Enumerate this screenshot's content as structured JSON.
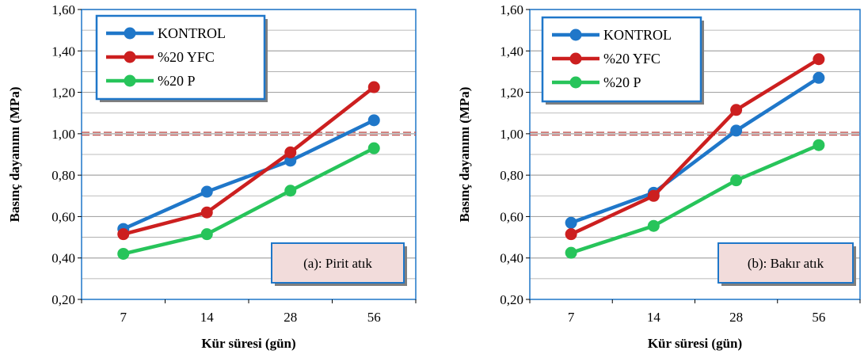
{
  "colors": {
    "KONTROL": "#1f77c9",
    "%20 YFC": "#cc1f1f",
    "%20 P": "#27c45a",
    "frame": "#1f77c9",
    "grid": "#a6a6a6",
    "reference": "#c0504d",
    "note_fill": "#f2dcdb"
  },
  "chart_data": [
    {
      "type": "line",
      "categories": [
        "7",
        "14",
        "28",
        "56"
      ],
      "series": [
        {
          "name": "KONTROL",
          "values": [
            0.54,
            0.72,
            0.87,
            1.065
          ]
        },
        {
          "name": "%20 YFC",
          "values": [
            0.515,
            0.62,
            0.91,
            1.225
          ]
        },
        {
          "name": "%20 P",
          "values": [
            0.42,
            0.515,
            0.725,
            0.93
          ]
        }
      ],
      "reference_line": 1.0,
      "xlabel": "Kür süresi (gün)",
      "ylabel": "Basınç dayanımı (MPa)",
      "ylim": [
        0.2,
        1.6
      ],
      "yticks": [
        "0,20",
        "0,40",
        "0,60",
        "0,80",
        "1,00",
        "1,20",
        "1,40",
        "1,60"
      ],
      "annotation": "(a): Pirit atık",
      "legend": "top-left",
      "grid": true
    },
    {
      "type": "line",
      "categories": [
        "7",
        "14",
        "28",
        "56"
      ],
      "series": [
        {
          "name": "KONTROL",
          "values": [
            0.57,
            0.715,
            1.015,
            1.27
          ]
        },
        {
          "name": "%20 YFC",
          "values": [
            0.515,
            0.7,
            1.115,
            1.36
          ]
        },
        {
          "name": "%20 P",
          "values": [
            0.425,
            0.555,
            0.775,
            0.945
          ]
        }
      ],
      "reference_line": 1.0,
      "xlabel": "Kür süresi (gün)",
      "ylabel": "Basınç dayanımı (MPa)",
      "ylim": [
        0.2,
        1.6
      ],
      "yticks": [
        "0,20",
        "0,40",
        "0,60",
        "0,80",
        "1,00",
        "1,20",
        "1,40",
        "1,60"
      ],
      "annotation": "(b): Bakır atık",
      "legend": "top-left",
      "grid": true
    }
  ]
}
